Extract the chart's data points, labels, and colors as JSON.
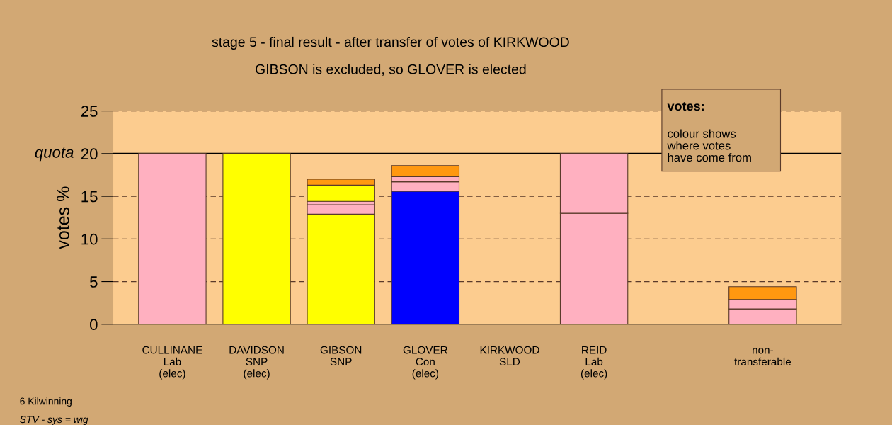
{
  "chart_data": {
    "type": "bar",
    "stacked": true,
    "title": "stage 5 - final result - after transfer of votes of KIRKWOOD",
    "subtitle": "GIBSON is excluded, so GLOVER is elected",
    "ylabel": "votes %",
    "categories": [
      "CULLINANE\nLab\n(elec)",
      "DAVIDSON\nSNP\n(elec)",
      "GIBSON\nSNP",
      "GLOVER\nCon\n(elec)",
      "KIRKWOOD\nSLD",
      "REID\nLab\n(elec)",
      null,
      "non-\ntransferable"
    ],
    "series": [
      {
        "colors": [
          "#ffb0c0",
          "#ffff00",
          "#ffff00",
          "#0000ff",
          "#5a3a2a",
          "#ffb0c0",
          "#ffb0c0",
          "#ffb0c0"
        ],
        "values": [
          20,
          20,
          12.9,
          15.6,
          0,
          13.0,
          null,
          1.8
        ]
      },
      {
        "colors": [
          "#ffb0c0",
          "#ffb0c0",
          "#ffb0c0",
          "#ffb0c0",
          "#ffb0c0",
          "#ffb0c0",
          "#ffb0c0",
          "#ffb0c0"
        ],
        "values": [
          null,
          null,
          1.1,
          1.1,
          null,
          7.0,
          null,
          1.1
        ]
      },
      {
        "colors": [
          "#ffb0c0",
          "#ffb0c0",
          "#ffb0c0",
          "#ffb0c0",
          "#ffb0c0",
          "#ffb0c0",
          "#ffb0c0",
          "#ff9810"
        ],
        "values": [
          null,
          null,
          0.4,
          0.6,
          null,
          null,
          null,
          1.5
        ]
      },
      {
        "colors": [
          "#ffff00",
          "#ffff00",
          "#ffff00",
          "#ff9810",
          "#ffff00",
          "#ffff00",
          "#ffff00",
          "#ffff00"
        ],
        "values": [
          null,
          null,
          1.9,
          1.3,
          null,
          null,
          null,
          null
        ]
      },
      {
        "colors": [
          "#ff9810",
          "#ff9810",
          "#ff9810",
          "#ff9810",
          "#ff9810",
          "#ff9810",
          "#ff9810",
          "#ff9810"
        ],
        "values": [
          null,
          null,
          0.7,
          null,
          null,
          null,
          null,
          null
        ]
      }
    ],
    "ylim": [
      0,
      25
    ],
    "yticks": [
      0,
      5,
      10,
      15,
      20,
      25
    ],
    "grid": "y",
    "ref_lines": [
      {
        "axis": "y",
        "value": 20,
        "label": "quota",
        "color": "#000000",
        "line_style": "solid"
      }
    ],
    "annotations": [
      "votes:",
      "colour shows\nwhere votes\nhave come from",
      "6 Kilwinning",
      "STV - sys = wig"
    ]
  }
}
